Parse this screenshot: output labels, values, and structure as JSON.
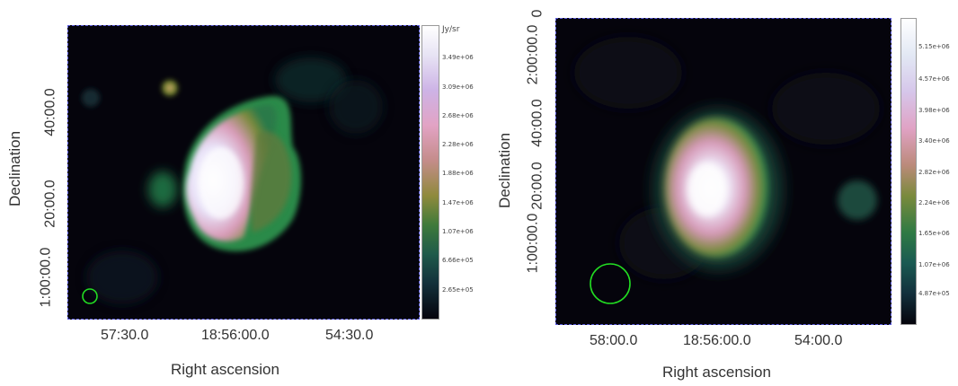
{
  "left_panel": {
    "ylabel": "Declination",
    "xlabel": "Right ascension",
    "x_ticks": [
      "57:30.0",
      "18:56:00.0",
      "54:30.0"
    ],
    "y_ticks": [
      "40:00.0",
      "20:00.0",
      "1:00:00.0",
      "1:00:00.0"
    ],
    "colorbar_unit": "Jy/sr",
    "colorbar_ticks": [
      "3.49e+06",
      "3.09e+06",
      "2.68e+06",
      "2.28e+06",
      "1.88e+06",
      "1.47e+06",
      "1.07e+06",
      "6.66e+05",
      "2.65e+05"
    ]
  },
  "right_panel": {
    "ylabel": "Declination",
    "xlabel": "Right ascension",
    "x_ticks": [
      "58:00.0",
      "18:56:00.0",
      "54:00.0"
    ],
    "y_ticks": [
      "1:00:00.0",
      "20:00.0",
      "40:00.0",
      "2:00:00.0",
      "0"
    ],
    "colorbar_ticks": [
      "5.15e+06",
      "4.57e+06",
      "3.98e+06",
      "3.40e+06",
      "2.82e+06",
      "2.24e+06",
      "1.65e+06",
      "1.07e+06",
      "4.87e+05"
    ]
  },
  "colors": {
    "beam_circle": "#22dd22",
    "frame_border": "#5a5adc",
    "background": "#05040c"
  }
}
